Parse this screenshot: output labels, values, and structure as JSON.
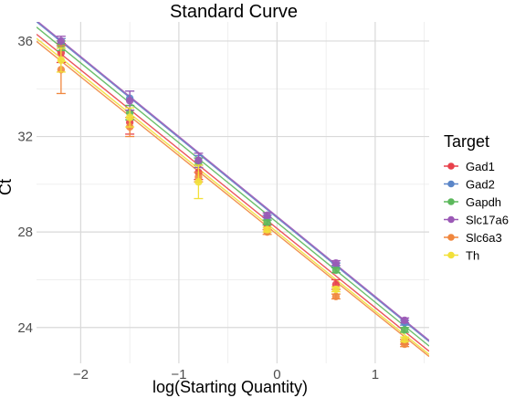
{
  "chart_data": {
    "type": "scatter",
    "title": "Standard Curve",
    "xlabel": "log(Starting Quantity)",
    "ylabel": "Ct",
    "xlim": [
      -2.45,
      1.55
    ],
    "ylim": [
      22.5,
      36.8
    ],
    "xticks": [
      -2,
      -1,
      0,
      1
    ],
    "yticks": [
      24,
      28,
      32,
      36
    ],
    "grid": true,
    "legend": {
      "title": "Target",
      "position": "right"
    },
    "x": [
      -2.2,
      -1.5,
      -0.8,
      -0.1,
      0.6,
      1.3
    ],
    "series": [
      {
        "name": "Gad1",
        "color": "#e8414b",
        "y": [
          35.5,
          32.6,
          30.5,
          28.2,
          25.8,
          23.4
        ],
        "err": [
          0.4,
          0.5,
          0.3,
          0.1,
          0.2,
          0.1
        ],
        "fit": {
          "slope": -3.32,
          "intercept": 28.15
        }
      },
      {
        "name": "Gad2",
        "color": "#5b86c8",
        "y": [
          35.9,
          33.6,
          31.0,
          28.6,
          26.6,
          24.2
        ],
        "err": [
          0.2,
          0.3,
          0.2,
          0.1,
          0.1,
          0.1
        ],
        "fit": {
          "slope": -3.35,
          "intercept": 28.6
        }
      },
      {
        "name": "Gapdh",
        "color": "#5cb85c",
        "y": [
          35.8,
          33.0,
          30.9,
          28.4,
          26.4,
          23.9
        ],
        "err": [
          0.2,
          0.3,
          0.2,
          0.1,
          0.1,
          0.1
        ],
        "fit": {
          "slope": -3.34,
          "intercept": 28.4
        }
      },
      {
        "name": "Slc17a6",
        "color": "#9b59b6",
        "y": [
          36.0,
          33.5,
          31.0,
          28.7,
          26.7,
          24.3
        ],
        "err": [
          0.2,
          0.4,
          0.3,
          0.1,
          0.1,
          0.1
        ],
        "fit": {
          "slope": -3.35,
          "intercept": 28.65
        }
      },
      {
        "name": "Slc6a3",
        "color": "#f0873e",
        "y": [
          34.8,
          32.4,
          30.3,
          28.0,
          25.3,
          23.3
        ],
        "err": [
          1.0,
          0.4,
          0.2,
          0.1,
          0.1,
          0.1
        ],
        "fit": {
          "slope": -3.3,
          "intercept": 27.9
        }
      },
      {
        "name": "Th",
        "color": "#f2e03a",
        "y": [
          35.2,
          32.8,
          30.1,
          28.1,
          25.6,
          23.5
        ],
        "err": [
          0.5,
          0.4,
          0.7,
          0.1,
          0.1,
          0.1
        ],
        "fit": {
          "slope": -3.31,
          "intercept": 28.0
        }
      }
    ]
  }
}
